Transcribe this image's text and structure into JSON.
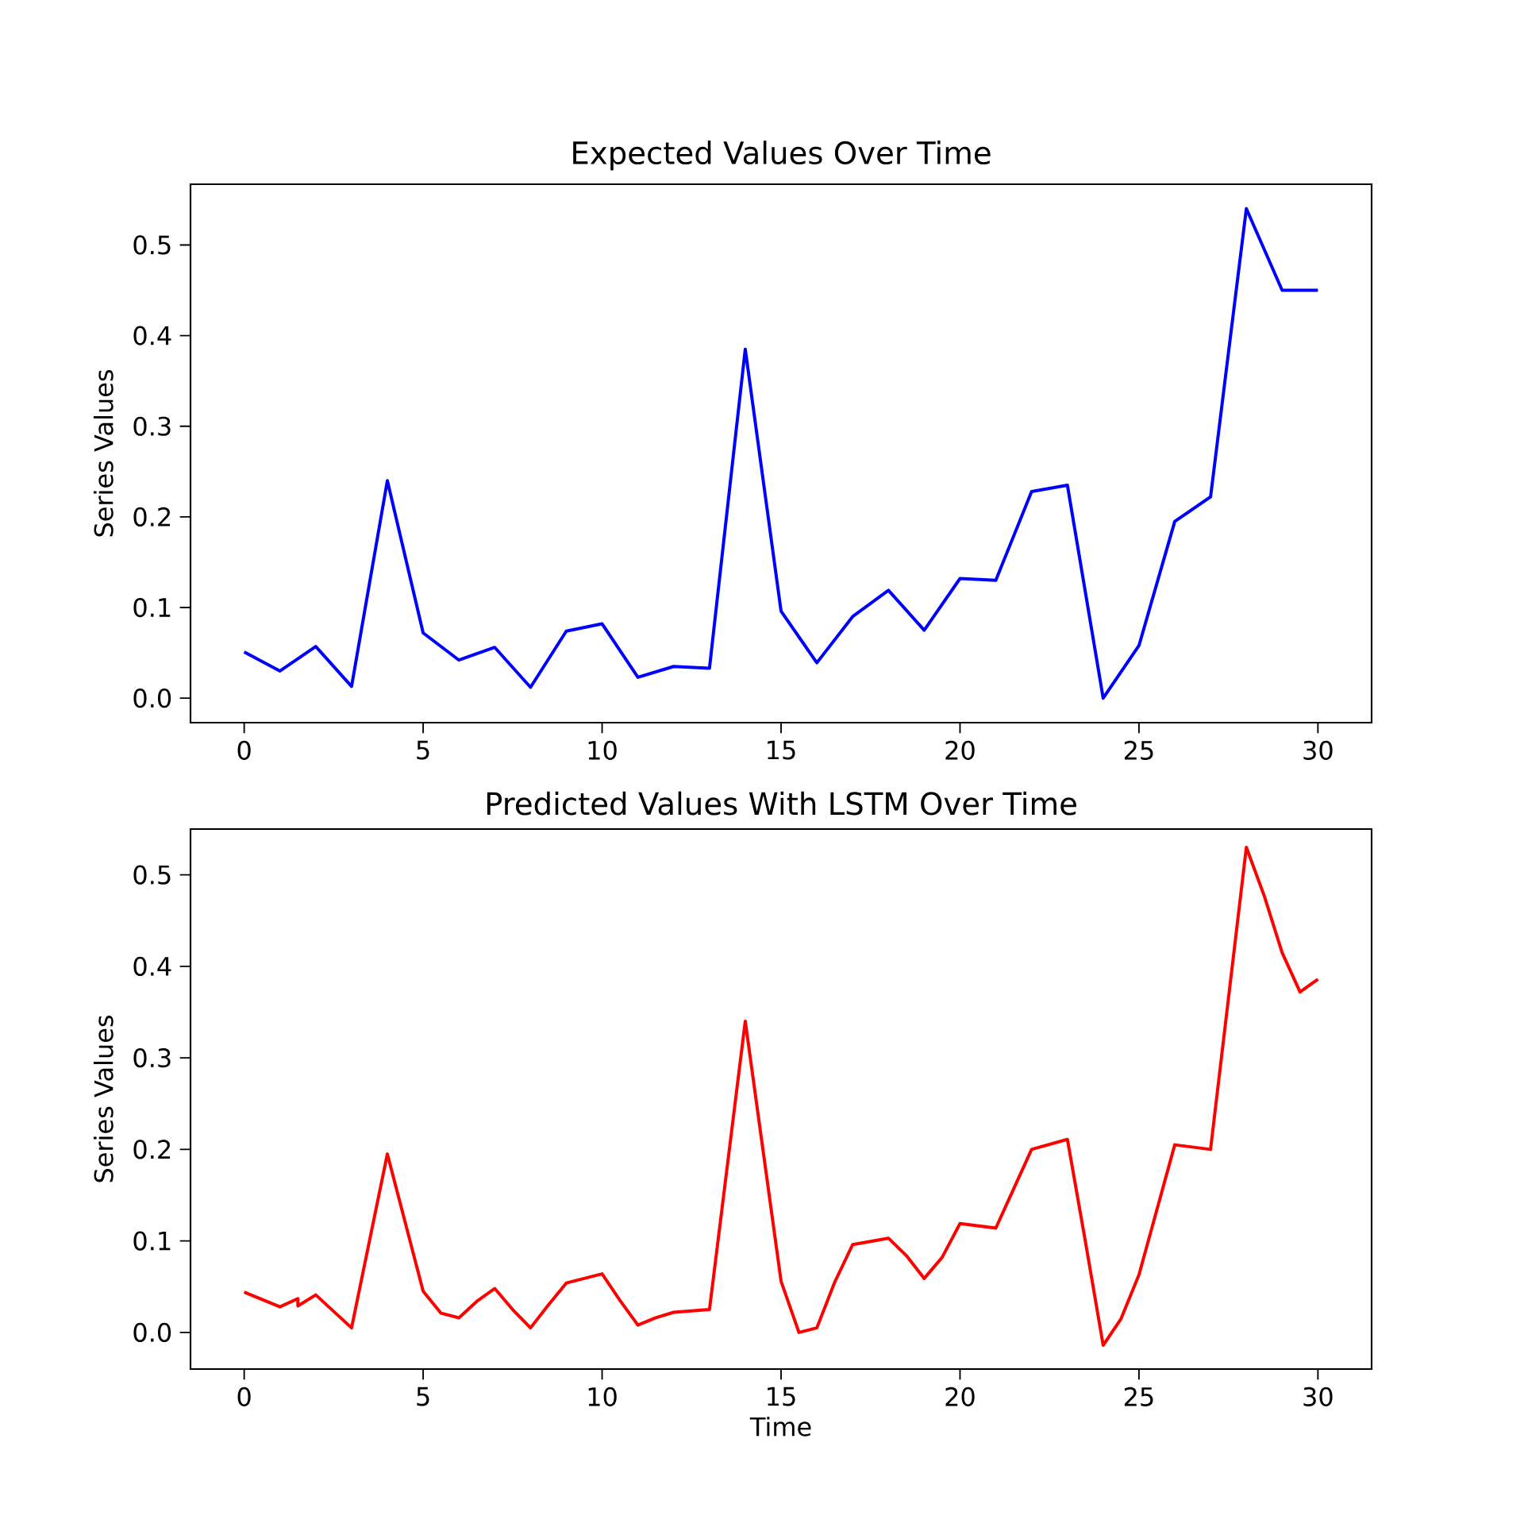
{
  "chart_data": [
    {
      "type": "line",
      "title": "Expected Values Over Time",
      "ylabel": "Series Values",
      "xlim": [
        -1.5,
        31.5
      ],
      "ylim": [
        -0.027,
        0.567
      ],
      "xticks": [
        0,
        5,
        10,
        15,
        20,
        25,
        30
      ],
      "yticks": [
        {
          "value": 0,
          "label": "0.0"
        },
        0.1,
        0.2,
        0.3,
        0.4,
        0.5
      ],
      "grid": false,
      "marker": "none",
      "line_style": "solid",
      "series": [
        {
          "color": "#0000ff",
          "x": [
            0,
            1,
            2,
            3,
            4,
            5,
            6,
            7,
            8,
            9,
            10,
            11,
            12,
            13,
            14,
            15,
            16,
            17,
            18,
            19,
            20,
            21,
            22,
            23,
            24,
            25,
            26,
            27,
            28,
            29,
            30
          ],
          "values": [
            0.051,
            0.03,
            0.057,
            0.013,
            0.24,
            0.072,
            0.042,
            0.056,
            0.012,
            0.074,
            0.082,
            0.023,
            0.035,
            0.033,
            0.385,
            0.096,
            0.039,
            0.09,
            0.119,
            0.075,
            0.132,
            0.13,
            0.228,
            0.235,
            0.0,
            0.058,
            0.195,
            0.222,
            0.54,
            0.45,
            0.45
          ]
        }
      ]
    },
    {
      "type": "line",
      "title": "Predicted Values With LSTM Over Time",
      "xlabel": "Time",
      "ylabel": "Series Values",
      "xlim": [
        -1.5,
        31.5
      ],
      "ylim": [
        -0.04,
        0.55
      ],
      "xticks": [
        0,
        5,
        10,
        15,
        20,
        25,
        30
      ],
      "yticks": [
        {
          "value": 0,
          "label": "0.0"
        },
        0.1,
        0.2,
        0.3,
        0.4,
        0.5
      ],
      "grid": false,
      "marker": "none",
      "line_style": "solid",
      "series": [
        {
          "color": "#ff0000",
          "x": [
            0,
            1,
            1.5,
            1.5,
            2,
            3,
            4,
            5,
            5.5,
            6,
            6.5,
            7,
            7.5,
            8,
            8.5,
            9,
            10,
            10.5,
            11,
            11.5,
            12,
            13,
            14,
            15,
            15.5,
            16,
            16.5,
            17,
            18,
            18.5,
            19,
            19.5,
            20,
            21,
            22,
            23,
            23.5,
            24,
            24.5,
            25,
            26,
            27,
            28,
            28.5,
            29,
            29.5,
            30
          ],
          "values": [
            0.044,
            0.028,
            0.037,
            0.029,
            0.041,
            0.005,
            0.195,
            0.045,
            0.021,
            0.016,
            0.034,
            0.048,
            0.025,
            0.005,
            0.03,
            0.054,
            0.064,
            0.035,
            0.008,
            0.016,
            0.022,
            0.025,
            0.34,
            0.056,
            0.0,
            0.005,
            0.055,
            0.096,
            0.103,
            0.084,
            0.059,
            0.082,
            0.119,
            0.114,
            0.2,
            0.211,
            0.1,
            -0.014,
            0.015,
            0.063,
            0.205,
            0.2,
            0.53,
            0.477,
            0.415,
            0.372,
            0.386
          ]
        }
      ]
    }
  ]
}
